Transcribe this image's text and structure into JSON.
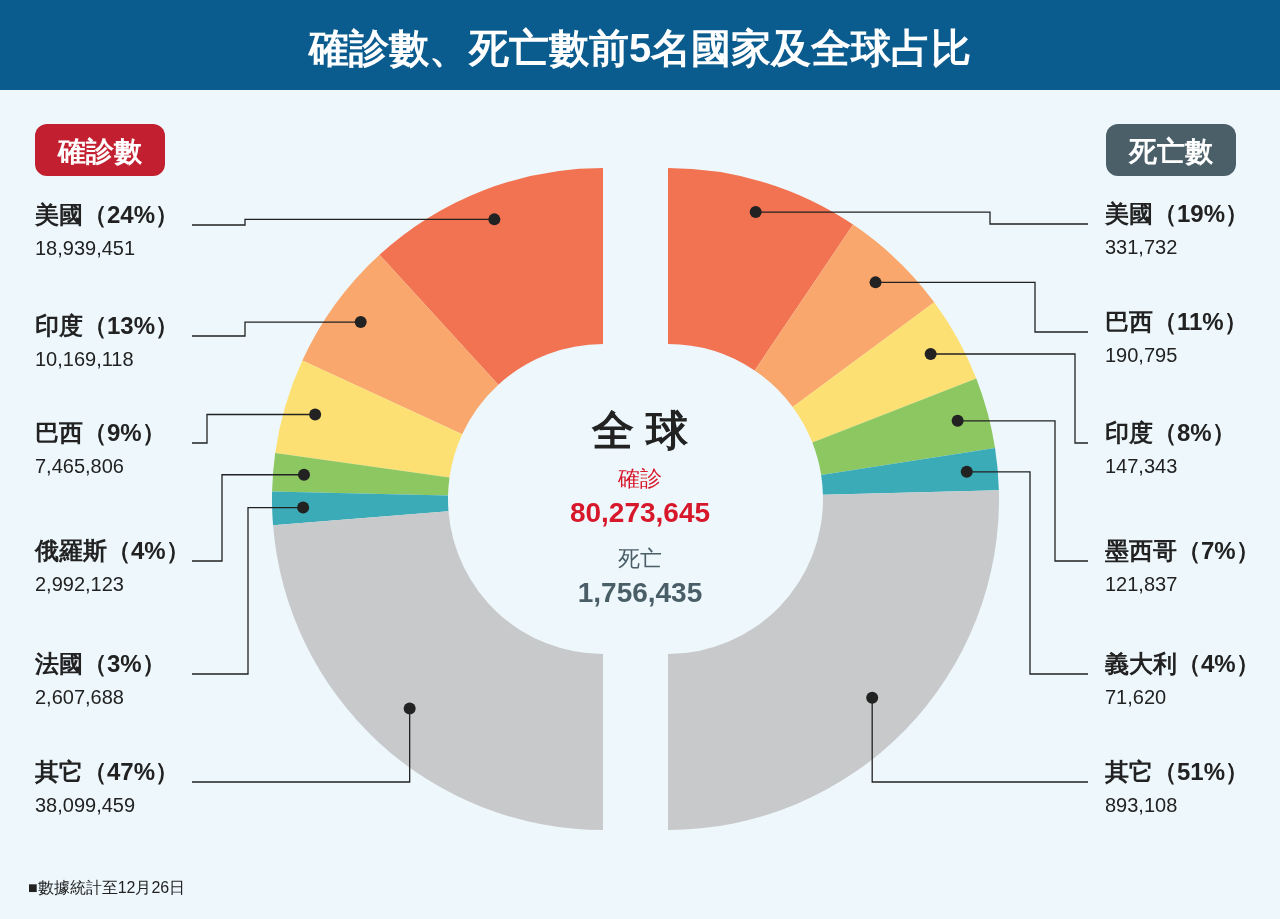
{
  "chart_data": [
    {
      "type": "donut",
      "title": "確診數、死亡數前5名國家及全球占比",
      "subtitle": "確診數",
      "categories": [
        "美國（24%）",
        "印度（13%）",
        "巴西（9%）",
        "俄羅斯（4%）",
        "法國（3%）",
        "其它（47%）"
      ],
      "values": [
        18939451,
        10169118,
        7465806,
        2992123,
        2607688,
        38099459
      ],
      "colors": [
        "#f27352",
        "#f9a76d",
        "#fde073",
        "#8dc762",
        "#3aabb7",
        "#c8c9cb"
      ],
      "value_labels": [
        "18,939,451",
        "10,169,118",
        "7,465,806",
        "2,992,123",
        "2,607,688",
        "38,099,459"
      ],
      "annotations": [
        "全 球",
        "確診",
        "80,273,645",
        "■數據統計至12月26日"
      ]
    },
    {
      "type": "donut",
      "subtitle": "死亡數",
      "categories": [
        "美國（19%）",
        "巴西（11%）",
        "印度（8%）",
        "墨西哥（7%）",
        "義大利（4%）",
        "其它（51%）"
      ],
      "values": [
        331732,
        190795,
        147343,
        121837,
        71620,
        893108
      ],
      "colors": [
        "#f27352",
        "#f9a76d",
        "#fde073",
        "#8dc762",
        "#3aabb7",
        "#c8c9cb"
      ],
      "value_labels": [
        "331,732",
        "190,795",
        "147,343",
        "121,837",
        "71,620",
        "893,108"
      ],
      "annotations": [
        "死亡",
        "1,756,435"
      ]
    }
  ]
}
